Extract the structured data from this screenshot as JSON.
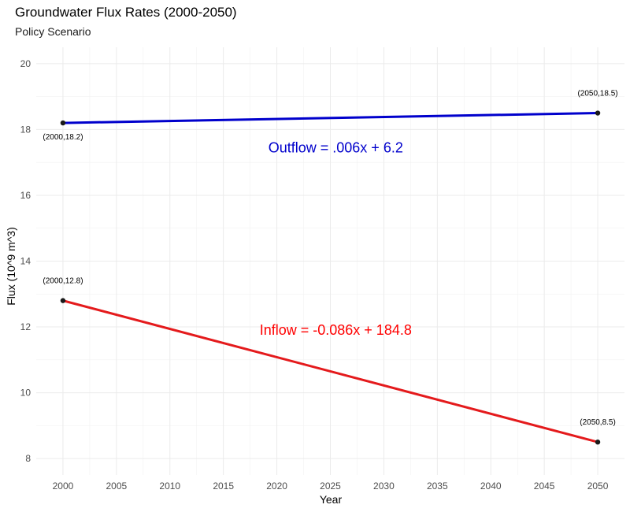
{
  "chart_data": {
    "type": "line",
    "title": "Groundwater Flux Rates (2000-2050)",
    "subtitle": "Policy Scenario",
    "xlabel": "Year",
    "ylabel": "Flux (10^9 m^3)",
    "xlim": [
      1997.5,
      2052.5
    ],
    "ylim": [
      7.5,
      20.5
    ],
    "x_ticks": [
      2000,
      2005,
      2010,
      2015,
      2020,
      2025,
      2030,
      2035,
      2040,
      2045,
      2050
    ],
    "y_ticks": [
      8,
      10,
      12,
      14,
      16,
      18,
      20
    ],
    "grid": true,
    "series": [
      {
        "name": "Outflow",
        "color": "#0000cc",
        "points": [
          {
            "x": 2000,
            "y": 18.2,
            "label": "(2000,18.2)",
            "label_pos": "below"
          },
          {
            "x": 2050,
            "y": 18.5,
            "label": "(2050,18.5)",
            "label_pos": "above"
          }
        ],
        "equation": {
          "text": "Outflow = .006x + 6.2",
          "x": 2025.5,
          "y": 17.45,
          "color": "#0000cc"
        }
      },
      {
        "name": "Inflow",
        "color": "#e41a1c",
        "points": [
          {
            "x": 2000,
            "y": 12.8,
            "label": "(2000,12.8)",
            "label_pos": "above"
          },
          {
            "x": 2050,
            "y": 8.5,
            "label": "(2050,8.5)",
            "label_pos": "above"
          }
        ],
        "equation": {
          "text": "Inflow = -0.086x + 184.8",
          "x": 2025.5,
          "y": 11.9,
          "color": "#ff0000"
        }
      }
    ]
  }
}
